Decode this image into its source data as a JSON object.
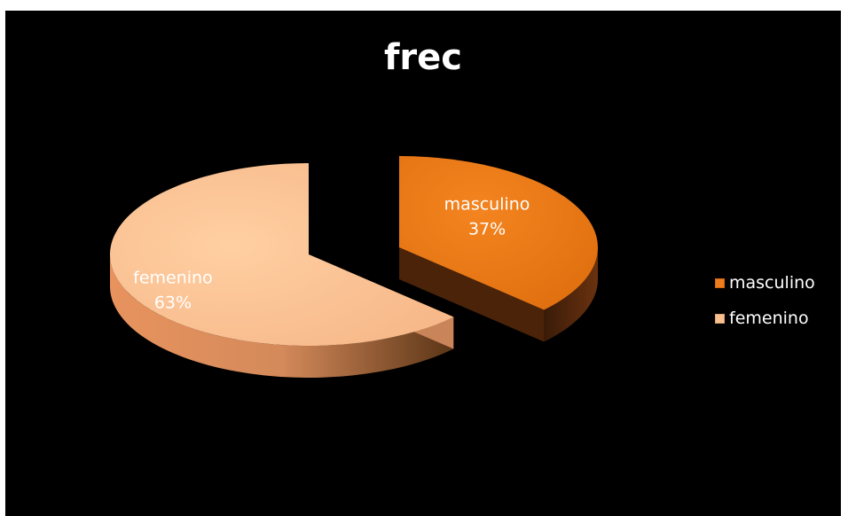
{
  "chart_data": {
    "type": "pie",
    "title": "frec",
    "categories": [
      "masculino",
      "femenino"
    ],
    "values": [
      37,
      63
    ],
    "unit": "%",
    "data_labels": [
      {
        "name": "masculino",
        "value": "37%"
      },
      {
        "name": "femenino",
        "value": "63%"
      }
    ],
    "legend": {
      "position": "right",
      "entries": [
        "masculino",
        "femenino"
      ]
    },
    "exploded": true,
    "style": "3d",
    "colors": {
      "masculino": "#ef7b1a",
      "femenino": "#fbc08d",
      "background": "#000000"
    }
  }
}
